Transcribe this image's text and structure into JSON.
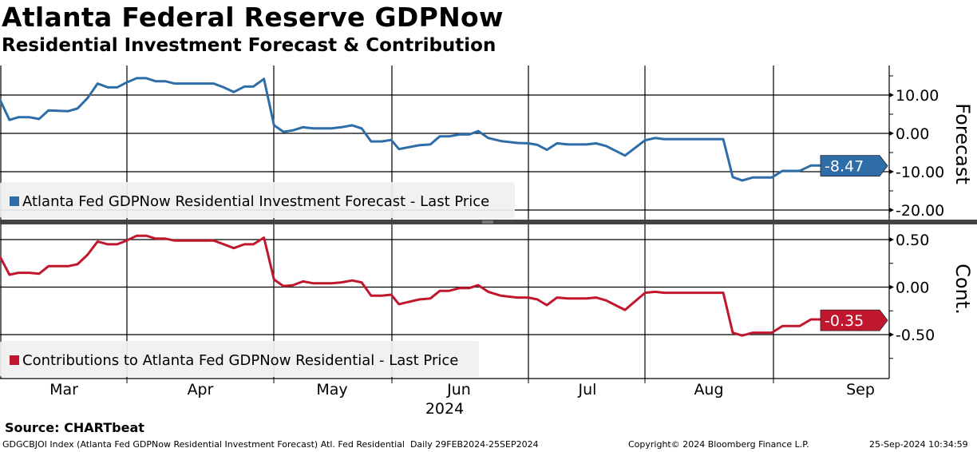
{
  "title": "Atlanta Federal Reserve GDPNow",
  "subtitle": "Residential Investment Forecast & Contribution",
  "chart_data": [
    {
      "type": "line",
      "panel": "top",
      "axis_title": "Forecast",
      "legend": "Atlanta Fed GDPNow Residential Investment Forecast - Last Price",
      "color": "#2e6da8",
      "last_value_label": "-8.47",
      "ylim": [
        -22,
        17
      ],
      "yticks": [
        10,
        0,
        -10,
        -20
      ],
      "ytick_labels": [
        "10.00",
        "0.00",
        "-10.00",
        "-20.00"
      ],
      "x_unit": "trading days since 29FEB2024",
      "points": [
        [
          0,
          8.75
        ],
        [
          1.6,
          3.5
        ],
        [
          3.1,
          4.2
        ],
        [
          5,
          4.2
        ],
        [
          6.6,
          3.75
        ],
        [
          8.2,
          6
        ],
        [
          11.5,
          5.8
        ],
        [
          13.1,
          6.5
        ],
        [
          14.8,
          9.2
        ],
        [
          16.5,
          13
        ],
        [
          18.2,
          12
        ],
        [
          19.8,
          12
        ],
        [
          21.4,
          13.3
        ],
        [
          23.1,
          14.4
        ],
        [
          24.7,
          14.4
        ],
        [
          26.3,
          13.6
        ],
        [
          27.9,
          13.6
        ],
        [
          29.5,
          13
        ],
        [
          36.1,
          13
        ],
        [
          37.8,
          12
        ],
        [
          39.5,
          10.8
        ],
        [
          41.3,
          12.2
        ],
        [
          42.8,
          12.2
        ],
        [
          44.6,
          14.2
        ],
        [
          46.3,
          2.1
        ],
        [
          47.9,
          0.4
        ],
        [
          49.5,
          0.8
        ],
        [
          51.2,
          1.6
        ],
        [
          52.9,
          1.3
        ],
        [
          56,
          1.3
        ],
        [
          57.7,
          1.6
        ],
        [
          59.5,
          2.1
        ],
        [
          61.1,
          1.3
        ],
        [
          62.7,
          -2.1
        ],
        [
          64.5,
          -2.1
        ],
        [
          66.1,
          -1.7
        ],
        [
          67.4,
          -4.1
        ],
        [
          70.8,
          -3.1
        ],
        [
          72.7,
          -2.9
        ],
        [
          74.3,
          -0.8
        ],
        [
          75.8,
          -0.8
        ],
        [
          77.7,
          -0.3
        ],
        [
          79.3,
          -0.3
        ],
        [
          80.8,
          0.6
        ],
        [
          82.5,
          -1.2
        ],
        [
          84.6,
          -2
        ],
        [
          87.4,
          -2.5
        ],
        [
          89.3,
          -2.6
        ],
        [
          90.8,
          -3
        ],
        [
          92.4,
          -4.3
        ],
        [
          94.1,
          -2.6
        ],
        [
          96,
          -2.9
        ],
        [
          99.1,
          -2.9
        ],
        [
          100.7,
          -2.6
        ],
        [
          102.4,
          -3.3
        ],
        [
          105.6,
          -5.8
        ],
        [
          109,
          -1.8
        ],
        [
          110.7,
          -1.2
        ],
        [
          112.2,
          -1.5
        ],
        [
          122.2,
          -1.5
        ],
        [
          123.8,
          -11.4
        ],
        [
          125.4,
          -12.3
        ],
        [
          127.2,
          -11.5
        ],
        [
          130.4,
          -11.5
        ],
        [
          132.2,
          -9.8
        ],
        [
          135.1,
          -9.8
        ],
        [
          137,
          -8.4
        ],
        [
          143.8,
          -8.4
        ],
        [
          145.2,
          -6.7
        ],
        [
          146.9,
          -8.47
        ]
      ]
    },
    {
      "type": "line",
      "panel": "bottom",
      "axis_title": "Cont.",
      "legend": "Contributions to Atlanta Fed GDPNow Residential - Last Price",
      "color": "#c0172f",
      "last_value_label": "-0.35",
      "ylim": [
        -0.95,
        0.67
      ],
      "yticks": [
        0.5,
        0,
        -0.5
      ],
      "ytick_labels": [
        "0.50",
        "0.00",
        "-0.50"
      ],
      "x_unit": "trading days since 29FEB2024",
      "points": [
        [
          0,
          0.32
        ],
        [
          1.6,
          0.13
        ],
        [
          3.1,
          0.15
        ],
        [
          5,
          0.15
        ],
        [
          6.6,
          0.14
        ],
        [
          8.2,
          0.22
        ],
        [
          11.5,
          0.22
        ],
        [
          13.1,
          0.24
        ],
        [
          14.8,
          0.34
        ],
        [
          16.5,
          0.48
        ],
        [
          18.2,
          0.45
        ],
        [
          19.8,
          0.45
        ],
        [
          21.4,
          0.49
        ],
        [
          23.1,
          0.54
        ],
        [
          24.7,
          0.54
        ],
        [
          26.3,
          0.51
        ],
        [
          27.9,
          0.51
        ],
        [
          29.5,
          0.49
        ],
        [
          36.1,
          0.49
        ],
        [
          37.8,
          0.45
        ],
        [
          39.5,
          0.41
        ],
        [
          41.3,
          0.45
        ],
        [
          42.8,
          0.45
        ],
        [
          44.6,
          0.52
        ],
        [
          46.3,
          0.08
        ],
        [
          47.9,
          0.01
        ],
        [
          49.5,
          0.02
        ],
        [
          51.2,
          0.06
        ],
        [
          52.9,
          0.04
        ],
        [
          56,
          0.04
        ],
        [
          57.7,
          0.05
        ],
        [
          59.5,
          0.07
        ],
        [
          61.1,
          0.05
        ],
        [
          62.7,
          -0.09
        ],
        [
          64.5,
          -0.09
        ],
        [
          66.1,
          -0.08
        ],
        [
          67.4,
          -0.18
        ],
        [
          70.8,
          -0.13
        ],
        [
          72.7,
          -0.12
        ],
        [
          74.3,
          -0.04
        ],
        [
          75.8,
          -0.04
        ],
        [
          77.7,
          -0.01
        ],
        [
          79.3,
          -0.01
        ],
        [
          80.8,
          0.02
        ],
        [
          82.5,
          -0.05
        ],
        [
          84.6,
          -0.09
        ],
        [
          87.4,
          -0.11
        ],
        [
          89.3,
          -0.11
        ],
        [
          90.8,
          -0.13
        ],
        [
          92.4,
          -0.19
        ],
        [
          94.1,
          -0.11
        ],
        [
          96,
          -0.12
        ],
        [
          99.1,
          -0.12
        ],
        [
          100.7,
          -0.11
        ],
        [
          102.4,
          -0.14
        ],
        [
          105.6,
          -0.24
        ],
        [
          109,
          -0.06
        ],
        [
          110.7,
          -0.05
        ],
        [
          112.2,
          -0.06
        ],
        [
          122.2,
          -0.06
        ],
        [
          123.8,
          -0.48
        ],
        [
          125.4,
          -0.51
        ],
        [
          127.2,
          -0.48
        ],
        [
          130.4,
          -0.48
        ],
        [
          132.2,
          -0.41
        ],
        [
          135.1,
          -0.41
        ],
        [
          137,
          -0.34
        ],
        [
          143.8,
          -0.34
        ],
        [
          145.2,
          -0.28
        ],
        [
          146.9,
          -0.35
        ]
      ]
    }
  ],
  "x_axis": {
    "months": [
      "Mar",
      "Apr",
      "May",
      "Jun",
      "Jul",
      "Aug",
      "Sep"
    ],
    "year": "2024"
  },
  "source": "Source: CHARTbeat",
  "footer": {
    "description": "GDGCBJOI Index (Atlanta Fed GDPNow Residential Investment Forecast) Atl. Fed Residential  Daily 29FEB2024-25SEP2024",
    "copyright": "Copyright© 2024 Bloomberg Finance L.P.",
    "timestamp": "25-Sep-2024 10:34:59"
  }
}
